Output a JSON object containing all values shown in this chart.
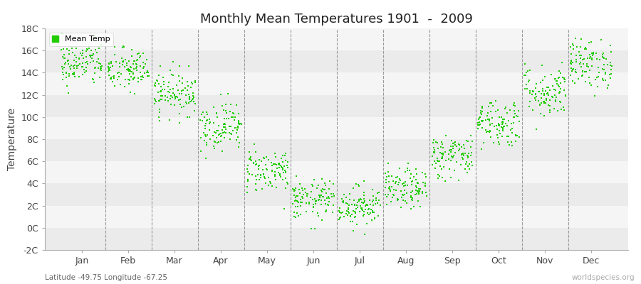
{
  "title": "Monthly Mean Temperatures 1901  -  2009",
  "ylabel": "Temperature",
  "subtitle": "Latitude -49.75 Longitude -67.25",
  "watermark": "worldspecies.org",
  "legend_label": "Mean Temp",
  "dot_color": "#22cc00",
  "background_color": "#ffffff",
  "plot_bg_color": "#f5f5f5",
  "band_color_light": "#ebebeb",
  "band_color_white": "#f5f5f5",
  "ylim": [
    -2,
    18
  ],
  "yticks": [
    -2,
    0,
    2,
    4,
    6,
    8,
    10,
    12,
    14,
    16,
    18
  ],
  "ytick_labels": [
    "-2C",
    "0C",
    "2C",
    "4C",
    "6C",
    "8C",
    "10C",
    "12C",
    "14C",
    "16C",
    "18C"
  ],
  "months": [
    "Jan",
    "Feb",
    "Mar",
    "Apr",
    "May",
    "Jun",
    "Jul",
    "Aug",
    "Sep",
    "Oct",
    "Nov",
    "Dec"
  ],
  "monthly_means": [
    14.8,
    14.2,
    12.2,
    9.2,
    5.2,
    2.5,
    2.0,
    3.5,
    6.5,
    9.5,
    12.3,
    14.8
  ],
  "monthly_stds": [
    1.0,
    1.0,
    1.0,
    1.1,
    1.0,
    0.9,
    0.9,
    0.9,
    1.0,
    1.1,
    1.2,
    1.1
  ],
  "n_years": 109,
  "seed": 42,
  "dot_size": 3
}
